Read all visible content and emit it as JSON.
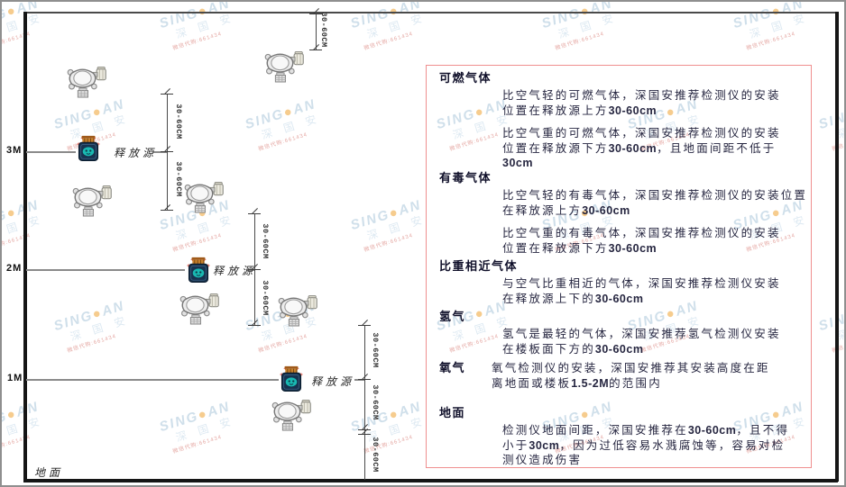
{
  "watermark": {
    "brand_prefix": "SING",
    "brand_suffix": "AN",
    "dot": "●",
    "company": "深 国 安",
    "contact": "微信代购:661434"
  },
  "diagram": {
    "height_labels": {
      "h3": "3M",
      "h2": "2M",
      "h1": "1M"
    },
    "ground_label": "地面",
    "source_label": "释放源",
    "dimension_label": "30-60CM"
  },
  "panel": {
    "border_color": "#ef8f8f",
    "sections": [
      {
        "heading": "可燃气体",
        "paragraphs": [
          {
            "lines": [
              "比空气轻的可燃气体，深国安推荐检测仪的安装",
              "位置在释放源上方30-60cm"
            ]
          },
          {
            "lines": [
              "比空气重的可燃气体，深国安推荐检测仪的安装",
              "位置在释放源下方30-60cm，且地面间距不低于",
              "30cm"
            ]
          }
        ]
      },
      {
        "heading": "有毒气体",
        "paragraphs": [
          {
            "lines": [
              "比空气轻的有毒气体，深国安推荐检测仪的安装位置",
              "在释放源上方30-60cm"
            ]
          },
          {
            "lines": [
              "比空气重的有毒气体，深国安推荐检测仪的安装",
              "位置在释放源下方30-60cm"
            ]
          }
        ]
      },
      {
        "heading": "比重相近气体",
        "paragraphs": [
          {
            "lines": [
              "与空气比重相近的气体，深国安推荐检测仪安装",
              "在释放源上下的30-60cm"
            ]
          }
        ]
      },
      {
        "heading": "氢气",
        "paragraphs": [
          {
            "lines": [
              "氢气是最轻的气体，深国安推荐氢气检测仪安装",
              "在楼板面下方的30-60cm"
            ]
          }
        ]
      },
      {
        "heading": "氧气",
        "inline": true,
        "paragraphs": [
          {
            "lines": [
              "氧气检测仪的安装，深国安推荐其安装高度在距",
              "离地面或楼板1.5-2M的范围内"
            ]
          }
        ]
      },
      {
        "heading": "地面",
        "paragraphs": [
          {
            "lines": [
              "检测仪地面间距，深国安推荐在30-60cm，且不得",
              "小于30cm，因为过低容易水溅腐蚀等，容易对检",
              "测仪造成伤害"
            ]
          }
        ]
      }
    ]
  }
}
